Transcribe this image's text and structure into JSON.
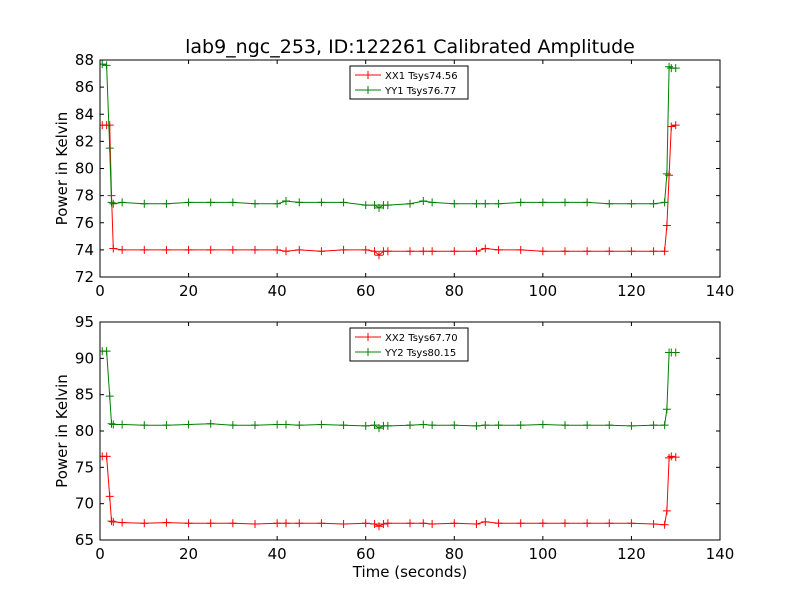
{
  "title": "lab9_ngc_253, ID:122261 Calibrated Amplitude",
  "colors": {
    "xx": "#ff0000",
    "yy": "#008000"
  },
  "chart_data": [
    {
      "type": "line",
      "title": "lab9_ngc_253, ID:122261 Calibrated Amplitude",
      "xlabel": "",
      "ylabel": "Power in Kelvin",
      "xlim": [
        0,
        140
      ],
      "ylim": [
        72,
        88
      ],
      "xticks": [
        0,
        20,
        40,
        60,
        80,
        100,
        120,
        140
      ],
      "yticks": [
        72,
        74,
        76,
        78,
        80,
        82,
        84,
        86,
        88
      ],
      "legend_position": "top-center",
      "grid": false,
      "x": [
        0.5,
        1.5,
        2.2,
        2.6,
        3,
        5,
        10,
        15,
        20,
        25,
        30,
        35,
        40,
        42,
        45,
        50,
        55,
        60,
        62,
        63,
        64,
        65,
        70,
        73,
        75,
        80,
        85,
        87,
        90,
        95,
        100,
        105,
        110,
        115,
        120,
        125,
        127.5,
        128,
        128.5,
        129,
        130
      ],
      "series": [
        {
          "name": "XX1 Tsys74.56",
          "color": "#ff0000",
          "values": [
            83.2,
            83.2,
            83.2,
            78.0,
            74.1,
            74.0,
            74.0,
            74.0,
            74.0,
            74.0,
            74.0,
            74.0,
            74.0,
            73.9,
            74.0,
            73.9,
            74.0,
            74.0,
            73.9,
            73.6,
            73.9,
            73.9,
            73.9,
            73.9,
            73.9,
            73.9,
            73.9,
            74.1,
            74.0,
            74.0,
            73.9,
            73.9,
            73.9,
            73.9,
            73.9,
            73.9,
            73.9,
            75.8,
            79.5,
            83.1,
            83.2
          ]
        },
        {
          "name": "YY1 Tsys76.77",
          "color": "#008000",
          "values": [
            87.7,
            87.6,
            81.5,
            77.5,
            77.4,
            77.5,
            77.4,
            77.4,
            77.5,
            77.5,
            77.5,
            77.4,
            77.4,
            77.6,
            77.5,
            77.5,
            77.5,
            77.3,
            77.3,
            77.1,
            77.3,
            77.3,
            77.4,
            77.6,
            77.5,
            77.4,
            77.4,
            77.4,
            77.4,
            77.5,
            77.5,
            77.5,
            77.5,
            77.4,
            77.4,
            77.4,
            77.5,
            79.6,
            87.5,
            87.4,
            87.4
          ]
        }
      ]
    },
    {
      "type": "line",
      "title": "",
      "xlabel": "Time (seconds)",
      "ylabel": "Power in Kelvin",
      "xlim": [
        0,
        140
      ],
      "ylim": [
        65,
        95
      ],
      "xticks": [
        0,
        20,
        40,
        60,
        80,
        100,
        120,
        140
      ],
      "yticks": [
        65,
        70,
        75,
        80,
        85,
        90,
        95
      ],
      "legend_position": "top-center",
      "grid": false,
      "x": [
        0.5,
        1.5,
        2.2,
        2.6,
        3,
        5,
        10,
        15,
        20,
        25,
        30,
        35,
        40,
        42,
        45,
        50,
        55,
        60,
        62,
        63,
        64,
        65,
        70,
        73,
        75,
        80,
        85,
        87,
        90,
        95,
        100,
        105,
        110,
        115,
        120,
        125,
        127.5,
        128,
        128.5,
        129,
        130
      ],
      "series": [
        {
          "name": "XX2 Tsys67.70",
          "color": "#ff0000",
          "values": [
            76.5,
            76.5,
            71.0,
            67.6,
            67.5,
            67.4,
            67.3,
            67.4,
            67.3,
            67.3,
            67.3,
            67.2,
            67.3,
            67.3,
            67.3,
            67.3,
            67.2,
            67.3,
            67.2,
            66.9,
            67.2,
            67.3,
            67.3,
            67.3,
            67.2,
            67.3,
            67.2,
            67.5,
            67.3,
            67.3,
            67.3,
            67.3,
            67.3,
            67.3,
            67.3,
            67.2,
            67.1,
            69.0,
            76.3,
            76.5,
            76.4
          ]
        },
        {
          "name": "YY2 Tsys80.15",
          "color": "#008000",
          "values": [
            91.0,
            91.0,
            84.8,
            81.0,
            80.9,
            80.9,
            80.8,
            80.8,
            80.9,
            81.0,
            80.8,
            80.8,
            80.9,
            80.9,
            80.8,
            80.9,
            80.8,
            80.7,
            80.8,
            80.4,
            80.7,
            80.7,
            80.8,
            80.9,
            80.8,
            80.8,
            80.7,
            80.8,
            80.8,
            80.8,
            80.9,
            80.8,
            80.8,
            80.8,
            80.7,
            80.8,
            80.8,
            83.0,
            90.8,
            90.8,
            90.8
          ]
        }
      ]
    }
  ]
}
